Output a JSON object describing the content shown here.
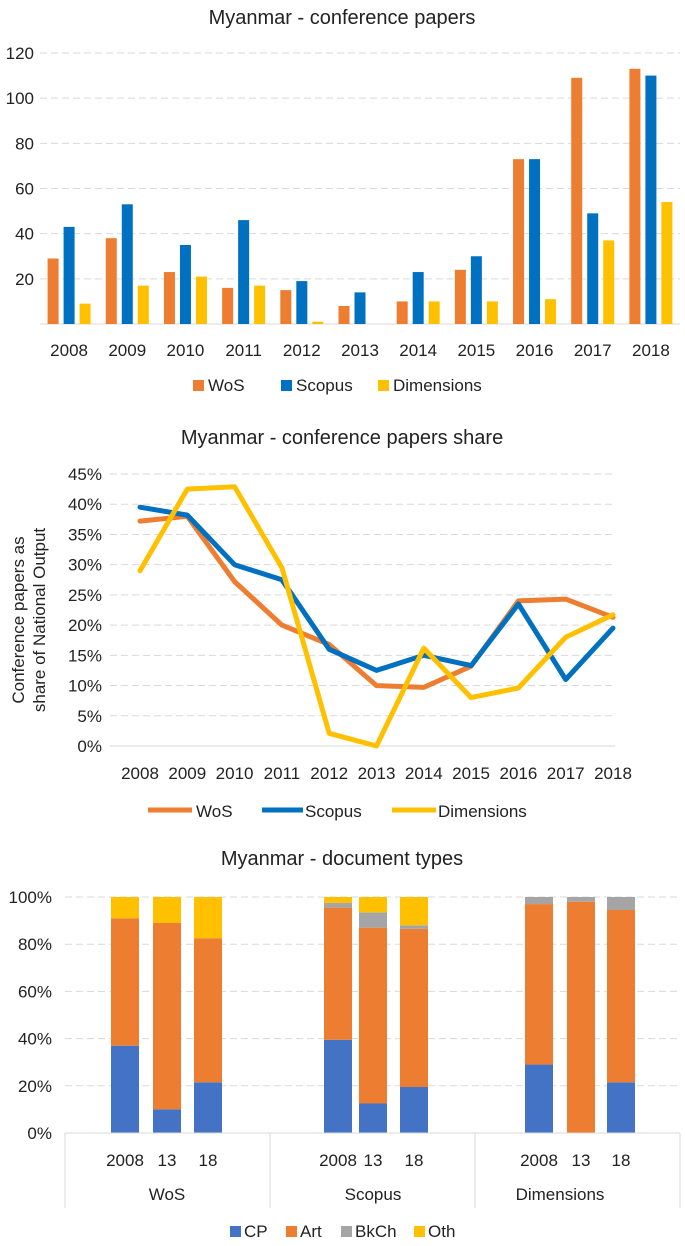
{
  "colors": {
    "wos": "#ED7D31",
    "scopus": "#0070C0",
    "dimensions": "#FFC000",
    "cp": "#4472C4",
    "art": "#ED7D31",
    "bkch": "#A5A5A5",
    "oth": "#FFC000",
    "grid": "#D9D9D9"
  },
  "chart_data": [
    {
      "type": "bar",
      "title": "Myanmar - conference papers",
      "categories": [
        "2008",
        "2009",
        "2010",
        "2011",
        "2012",
        "2013",
        "2014",
        "2015",
        "2016",
        "2017",
        "2018"
      ],
      "series": [
        {
          "name": "WoS",
          "values": [
            29,
            38,
            23,
            16,
            15,
            8,
            10,
            24,
            73,
            109,
            113
          ]
        },
        {
          "name": "Scopus",
          "values": [
            43,
            53,
            35,
            46,
            19,
            14,
            23,
            30,
            73,
            49,
            110
          ]
        },
        {
          "name": "Dimensions",
          "values": [
            9,
            17,
            21,
            17,
            1,
            0,
            10,
            10,
            11,
            37,
            54
          ]
        }
      ],
      "ylim": [
        0,
        120
      ],
      "yticks": [
        "20",
        "40",
        "60",
        "80",
        "100",
        "120"
      ],
      "grid": true,
      "legend": "bottom"
    },
    {
      "type": "line",
      "title": "Myanmar - conference papers share",
      "ylabel_line1": "Conference papers as",
      "ylabel_line2": "share of National Output",
      "categories": [
        "2008",
        "2009",
        "2010",
        "2011",
        "2012",
        "2013",
        "2014",
        "2015",
        "2016",
        "2017",
        "2018"
      ],
      "series": [
        {
          "name": "WoS",
          "values": [
            37.2,
            38.0,
            27.2,
            20.0,
            16.8,
            10.0,
            9.7,
            13.2,
            24.0,
            24.3,
            21.3
          ]
        },
        {
          "name": "Scopus",
          "values": [
            39.5,
            38.2,
            30.0,
            27.5,
            16.0,
            12.5,
            15.0,
            13.3,
            23.5,
            11.0,
            19.5
          ]
        },
        {
          "name": "Dimensions",
          "values": [
            29.0,
            42.5,
            42.9,
            29.5,
            2.1,
            0.0,
            16.2,
            8.0,
            9.6,
            18.0,
            21.7
          ]
        }
      ],
      "ylim": [
        0,
        45
      ],
      "yticks": [
        "0%",
        "5%",
        "10%",
        "15%",
        "20%",
        "25%",
        "30%",
        "35%",
        "40%",
        "45%"
      ],
      "grid": true,
      "legend": "bottom"
    },
    {
      "type": "bar",
      "stacked": true,
      "title": "Myanmar - document types",
      "groups": [
        {
          "name": "WoS",
          "categories": [
            "2008",
            "13",
            "18"
          ]
        },
        {
          "name": "Scopus",
          "categories": [
            "2008",
            "13",
            "18"
          ]
        },
        {
          "name": "Dimensions",
          "categories": [
            "2008",
            "13",
            "18"
          ]
        }
      ],
      "series": [
        {
          "name": "CP",
          "values": [
            37,
            10,
            21.5,
            39.5,
            12.5,
            19.5,
            29,
            0,
            21.5
          ]
        },
        {
          "name": "Art",
          "values": [
            54,
            79,
            61,
            56,
            74.5,
            67,
            68,
            98,
            73
          ]
        },
        {
          "name": "BkCh",
          "values": [
            0,
            0,
            0,
            2,
            6.5,
            1.5,
            3,
            2,
            5.5
          ]
        },
        {
          "name": "Oth",
          "values": [
            9,
            11,
            17.5,
            2.5,
            6.5,
            12,
            0,
            0,
            0
          ]
        }
      ],
      "ylim": [
        0,
        100
      ],
      "yticks": [
        "0%",
        "20%",
        "40%",
        "60%",
        "80%",
        "100%"
      ],
      "grid": true,
      "legend": "bottom"
    }
  ]
}
